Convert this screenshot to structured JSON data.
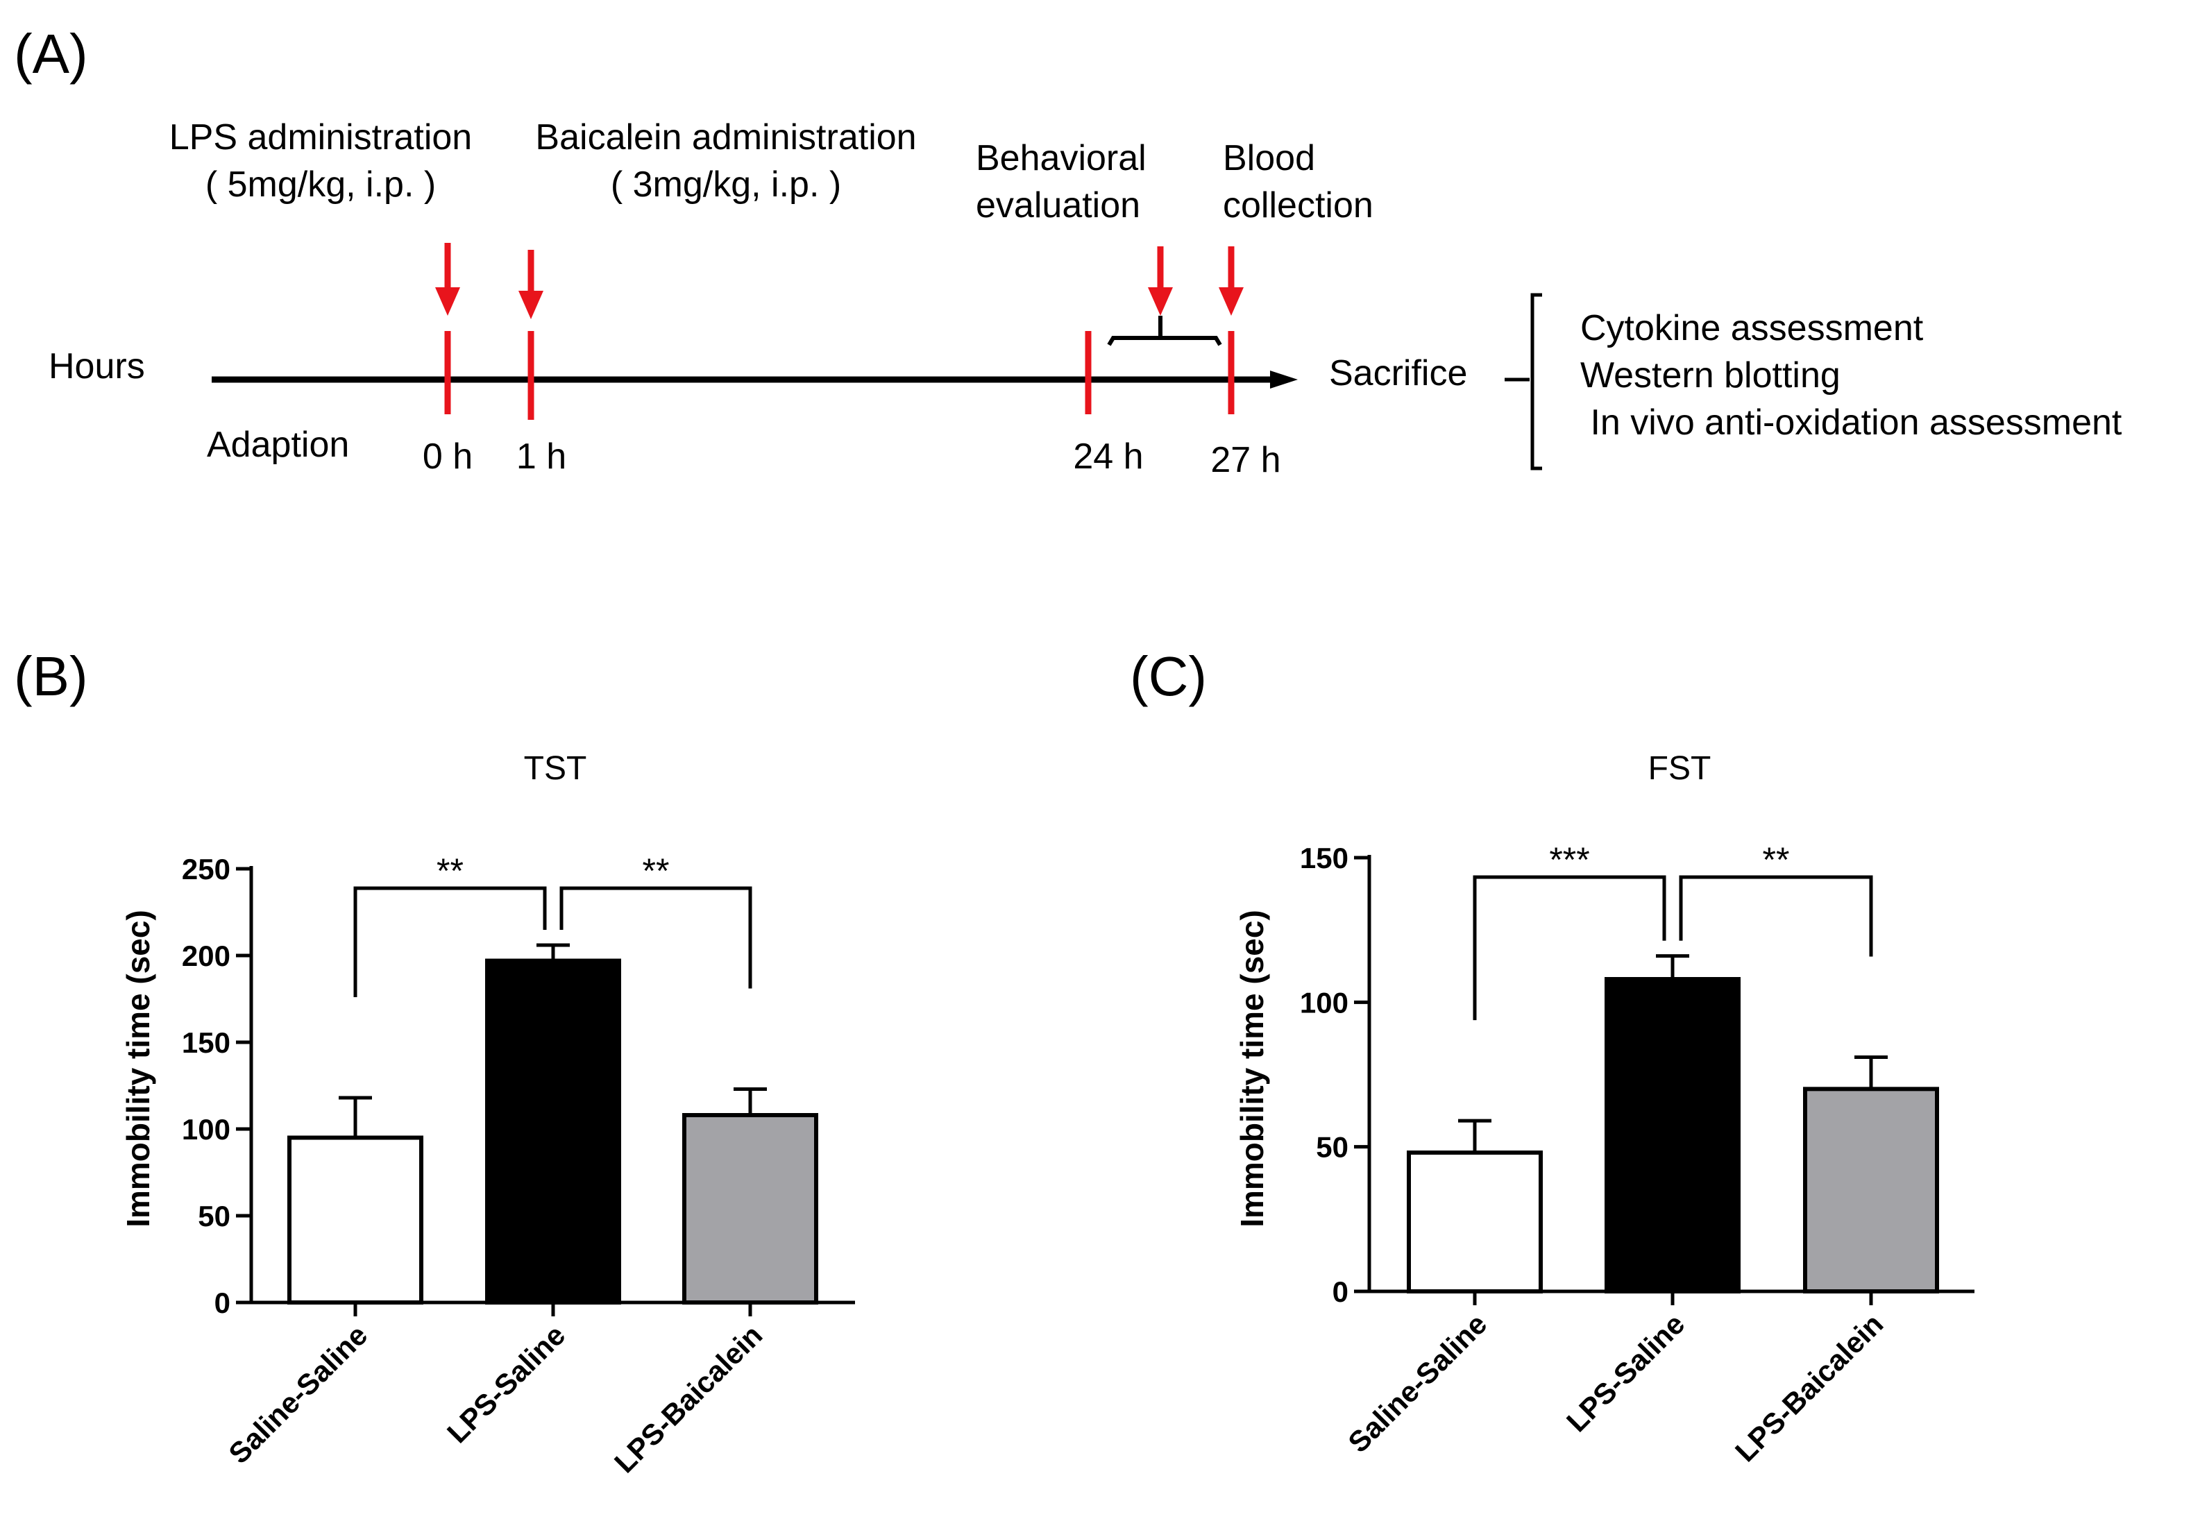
{
  "colors": {
    "red": "#e8141c",
    "black": "#000000",
    "gray": "#a3a3a7",
    "white": "#ffffff"
  },
  "panel_a": {
    "label": "(A)",
    "lps_title": "LPS administration",
    "lps_dose": "( 5mg/kg, i.p. )",
    "baicalein_title": "Baicalein administration",
    "baicalein_dose": "( 3mg/kg, i.p. )",
    "behavioral_line1": "Behavioral",
    "behavioral_line2": "evaluation",
    "blood_line1": "Blood",
    "blood_line2": "collection",
    "hours_label": "Hours",
    "adaption_label": "Adaption",
    "t0": "0 h",
    "t1": "1 h",
    "t24": "24 h",
    "t27": "27 h",
    "sacrifice": "Sacrifice",
    "outcomes": [
      "Cytokine assessment",
      "Western blotting",
      " In vivo anti-oxidation assessment"
    ]
  },
  "chart_data": [
    {
      "panel_label": "(B)",
      "type": "bar",
      "title": "TST",
      "xlabel": "",
      "ylabel": "Immobility time (sec)",
      "ylim": [
        0,
        250
      ],
      "yticks": [
        0,
        50,
        100,
        150,
        200,
        250
      ],
      "categories": [
        "Saline-Saline",
        "LPS-Saline",
        "LPS-Baicalein"
      ],
      "values": [
        95,
        197,
        108
      ],
      "errors": [
        23,
        9,
        15
      ],
      "bar_colors": [
        "#ffffff",
        "#000000",
        "#a3a3a7"
      ],
      "comparisons": [
        {
          "from": 0,
          "to": 1,
          "label": "**"
        },
        {
          "from": 1,
          "to": 2,
          "label": "**"
        }
      ]
    },
    {
      "panel_label": "(C)",
      "type": "bar",
      "title": "FST",
      "xlabel": "",
      "ylabel": "Immobility time (sec)",
      "ylim": [
        0,
        150
      ],
      "yticks": [
        0,
        50,
        100,
        150
      ],
      "categories": [
        "Saline-Saline",
        "LPS-Saline",
        "LPS-Baicalein"
      ],
      "values": [
        48,
        108,
        70
      ],
      "errors": [
        11,
        8,
        11
      ],
      "bar_colors": [
        "#ffffff",
        "#000000",
        "#a3a3a7"
      ],
      "comparisons": [
        {
          "from": 0,
          "to": 1,
          "label": "***"
        },
        {
          "from": 1,
          "to": 2,
          "label": "**"
        }
      ]
    }
  ]
}
